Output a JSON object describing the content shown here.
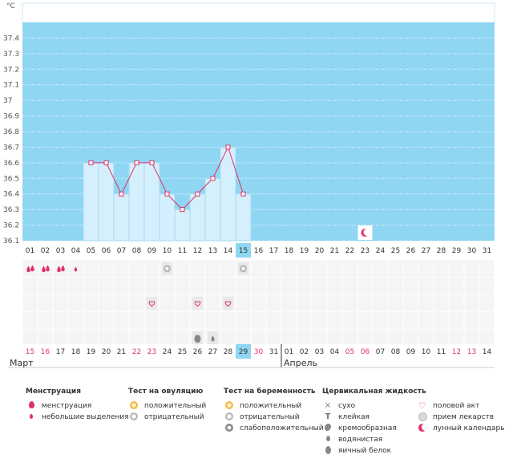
{
  "chart_data": {
    "type": "line",
    "unit_label": "°C",
    "y_ticks": [
      "37.4",
      "37.3",
      "37.2",
      "37.1",
      "37",
      "36.9",
      "36.8",
      "36.7",
      "36.6",
      "36.5",
      "36.4",
      "36.3",
      "36.2",
      "36.1"
    ],
    "ylim": [
      36.1,
      37.5
    ],
    "days": [
      "01",
      "02",
      "03",
      "04",
      "05",
      "06",
      "07",
      "08",
      "09",
      "10",
      "11",
      "12",
      "13",
      "14",
      "15",
      "16",
      "17",
      "18",
      "19",
      "20",
      "21",
      "22",
      "23",
      "24",
      "25",
      "26",
      "27",
      "28",
      "29",
      "30",
      "31"
    ],
    "temperatures": [
      null,
      null,
      null,
      null,
      36.6,
      36.6,
      36.4,
      36.6,
      36.6,
      36.4,
      36.3,
      36.4,
      36.5,
      36.7,
      36.4,
      null,
      null,
      null,
      null,
      null,
      null,
      null,
      null,
      null,
      null,
      null,
      null,
      null,
      null,
      null,
      null
    ],
    "highlight_day_index": 14,
    "moon_day_index": 22,
    "menstruation_row": [
      "big",
      "big",
      "big",
      "small",
      null,
      null,
      null,
      null,
      null,
      null,
      null,
      null,
      null,
      null,
      null,
      null,
      null,
      null,
      null,
      null,
      null,
      null,
      null,
      null,
      null,
      null,
      null,
      null,
      null,
      null,
      null
    ],
    "ovulation_row": [
      null,
      null,
      null,
      null,
      null,
      null,
      null,
      null,
      null,
      "negative",
      null,
      null,
      null,
      null,
      "negative",
      null,
      null,
      null,
      null,
      null,
      null,
      null,
      null,
      null,
      null,
      null,
      null,
      null,
      null,
      null,
      null
    ],
    "sex_row": [
      null,
      null,
      null,
      null,
      null,
      null,
      null,
      null,
      "heart",
      null,
      null,
      "heart",
      null,
      "heart",
      null,
      null,
      null,
      null,
      null,
      null,
      null,
      null,
      null,
      null,
      null,
      null,
      null,
      null,
      null,
      null,
      null
    ],
    "fluid_row": [
      null,
      null,
      null,
      null,
      null,
      null,
      null,
      null,
      null,
      null,
      null,
      "egg-white",
      "watery",
      null,
      null,
      null,
      null,
      null,
      null,
      null,
      null,
      null,
      null,
      null,
      null,
      null,
      null,
      null,
      null,
      null,
      null
    ],
    "cycle_dates": [
      "15",
      "16",
      "17",
      "18",
      "19",
      "20",
      "21",
      "22",
      "23",
      "24",
      "25",
      "26",
      "27",
      "28",
      "29",
      "30",
      "31",
      "01",
      "02",
      "03",
      "04",
      "05",
      "06",
      "07",
      "08",
      "09",
      "10",
      "11",
      "12",
      "13",
      "14"
    ],
    "cycle_weekend": [
      true,
      true,
      false,
      false,
      false,
      false,
      false,
      true,
      true,
      false,
      false,
      false,
      false,
      false,
      false,
      true,
      false,
      false,
      false,
      false,
      false,
      true,
      true,
      false,
      false,
      false,
      false,
      false,
      true,
      true,
      false
    ],
    "colors": {
      "sky": "#8fd6f3",
      "bar": "#d4f0fd",
      "bar_edge": "#a8d9f2",
      "line": "#e0306a",
      "highlight": "#8fd6f3",
      "weekend": "#e0306a"
    }
  },
  "months": {
    "first": "Март",
    "second": "Апрель"
  },
  "legend": {
    "menstruation": {
      "title": "Менструация",
      "items": [
        "менструация",
        "небольшие выделения"
      ]
    },
    "ovulation": {
      "title": "Тест на овуляцию",
      "items": [
        "положительный",
        "отрицательный"
      ]
    },
    "pregnancy": {
      "title": "Тест на беременность",
      "items": [
        "положительный",
        "отрицательный",
        "слабоположительный"
      ]
    },
    "fluid": {
      "title": "Цервикальная жидкость",
      "items": [
        "сухо",
        "клейкая",
        "кремообразная",
        "водянистая",
        "яичный белок"
      ]
    },
    "other": {
      "items": [
        "половой акт",
        "прием лекарств",
        "лунный календарь"
      ]
    }
  }
}
